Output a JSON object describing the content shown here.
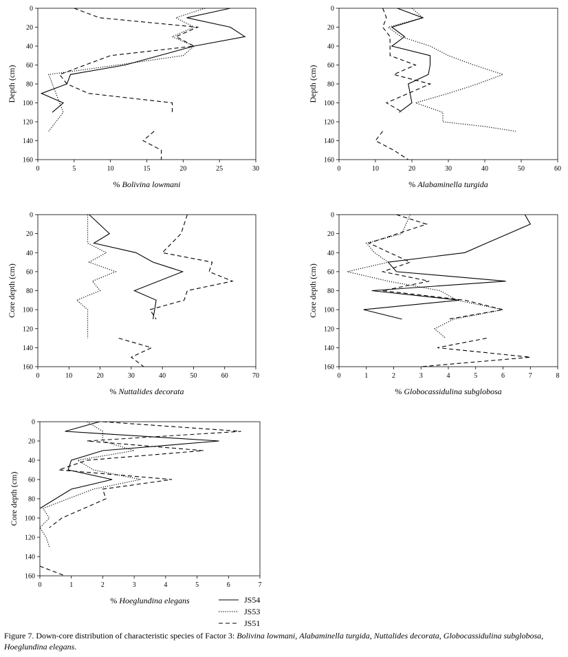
{
  "chart_data": [
    {
      "type": "line",
      "ylabel": "Depth (cm)",
      "xlabel_prefix": "% ",
      "xlabel_species": "Bolivina lowmani",
      "xlim": [
        0,
        30
      ],
      "xticks": [
        0,
        5,
        10,
        15,
        20,
        25,
        30
      ],
      "ylim": [
        0,
        160
      ],
      "yticks": [
        0,
        20,
        40,
        60,
        80,
        100,
        120,
        140,
        160
      ],
      "series": [
        {
          "name": "JS54",
          "points": [
            [
              26.5,
              0
            ],
            [
              20.5,
              10
            ],
            [
              26.5,
              20
            ],
            [
              28.5,
              30
            ],
            [
              21.5,
              40
            ],
            [
              12,
              60
            ],
            [
              4.5,
              70
            ],
            [
              4,
              80
            ],
            [
              0.5,
              90
            ],
            [
              3.5,
              100
            ],
            [
              2,
              110
            ]
          ]
        },
        {
          "name": "JS53",
          "points": [
            [
              23,
              0
            ],
            [
              19,
              10
            ],
            [
              21.5,
              20
            ],
            [
              18.5,
              30
            ],
            [
              21.5,
              40
            ],
            [
              20,
              50
            ],
            [
              11,
              60
            ],
            [
              1.5,
              70
            ],
            [
              2,
              80
            ],
            [
              2.5,
              90
            ],
            [
              3.5,
              110
            ],
            [
              1.5,
              130
            ]
          ]
        },
        {
          "name": "JS51",
          "points": [
            [
              5,
              0
            ],
            [
              8.5,
              10
            ],
            [
              22,
              20
            ],
            [
              19,
              30
            ],
            [
              21.5,
              40
            ],
            [
              10,
              50
            ],
            [
              3,
              70
            ],
            [
              4,
              80
            ],
            [
              7,
              90
            ],
            [
              18.5,
              100
            ],
            [
              18.5,
              110
            ]
          ],
          "points2": [
            [
              16,
              130
            ],
            [
              14.5,
              140
            ],
            [
              17,
              150
            ],
            [
              17,
              160
            ]
          ]
        }
      ]
    },
    {
      "type": "line",
      "ylabel": "Depth (cm)",
      "xlabel_prefix": "% ",
      "xlabel_species": "Alabaminella turgida",
      "xlim": [
        0,
        60
      ],
      "xticks": [
        0,
        10,
        20,
        30,
        40,
        50,
        60
      ],
      "ylim": [
        0,
        160
      ],
      "yticks": [
        0,
        20,
        40,
        60,
        80,
        100,
        120,
        140,
        160
      ],
      "series": [
        {
          "name": "JS54",
          "points": [
            [
              16,
              0
            ],
            [
              23,
              10
            ],
            [
              14.5,
              20
            ],
            [
              18,
              30
            ],
            [
              14.5,
              40
            ],
            [
              25,
              50
            ],
            [
              25,
              60
            ],
            [
              24.5,
              70
            ],
            [
              19,
              80
            ],
            [
              20,
              100
            ],
            [
              16.5,
              110
            ]
          ]
        },
        {
          "name": "JS53",
          "points": [
            [
              20,
              0
            ],
            [
              23,
              10
            ],
            [
              13.5,
              20
            ],
            [
              17,
              30
            ],
            [
              25,
              40
            ],
            [
              30,
              50
            ],
            [
              37,
              60
            ],
            [
              45,
              70
            ],
            [
              38,
              80
            ],
            [
              30,
              90
            ],
            [
              21,
              100
            ],
            [
              28.5,
              110
            ],
            [
              28.5,
              120
            ],
            [
              40,
              125
            ],
            [
              48.5,
              130
            ]
          ]
        },
        {
          "name": "JS51",
          "points": [
            [
              12,
              0
            ],
            [
              13,
              10
            ],
            [
              12,
              20
            ],
            [
              14,
              30
            ],
            [
              14,
              40
            ],
            [
              14,
              50
            ],
            [
              21,
              60
            ],
            [
              15,
              70
            ],
            [
              25,
              80
            ],
            [
              13,
              100
            ],
            [
              17.5,
              110
            ]
          ],
          "points2": [
            [
              12,
              130
            ],
            [
              10,
              140
            ],
            [
              15,
              150
            ],
            [
              19,
              160
            ]
          ]
        }
      ]
    },
    {
      "type": "line",
      "ylabel": "Core depth (cm)",
      "xlabel_prefix": "% ",
      "xlabel_species": "Nuttalides decorata",
      "xlim": [
        0,
        70
      ],
      "xticks": [
        0,
        10,
        20,
        30,
        40,
        50,
        60,
        70
      ],
      "ylim": [
        0,
        160
      ],
      "yticks": [
        0,
        20,
        40,
        60,
        80,
        100,
        120,
        140,
        160
      ],
      "series": [
        {
          "name": "JS54",
          "points": [
            [
              16.5,
              0
            ],
            [
              23,
              20
            ],
            [
              18,
              30
            ],
            [
              31.5,
              40
            ],
            [
              37,
              50
            ],
            [
              46.5,
              60
            ],
            [
              31,
              80
            ],
            [
              38,
              90
            ],
            [
              37,
              110
            ]
          ]
        },
        {
          "name": "JS53",
          "points": [
            [
              16,
              0
            ],
            [
              16,
              10
            ],
            [
              16,
              20
            ],
            [
              16,
              30
            ],
            [
              22,
              40
            ],
            [
              16.5,
              50
            ],
            [
              25,
              60
            ],
            [
              17.5,
              70
            ],
            [
              20,
              80
            ],
            [
              12.5,
              90
            ],
            [
              16,
              100
            ],
            [
              16,
              130
            ]
          ]
        },
        {
          "name": "JS51",
          "points": [
            [
              48,
              0
            ],
            [
              46,
              20
            ],
            [
              40,
              40
            ],
            [
              56,
              50
            ],
            [
              55,
              60
            ],
            [
              62.5,
              70
            ],
            [
              48,
              80
            ],
            [
              47,
              90
            ],
            [
              36,
              100
            ],
            [
              38,
              110
            ]
          ],
          "points2": [
            [
              26,
              130
            ],
            [
              36.5,
              140
            ],
            [
              30,
              150
            ],
            [
              34,
              160
            ]
          ]
        }
      ]
    },
    {
      "type": "line",
      "ylabel": "Core depth (cm)",
      "xlabel_prefix": "% ",
      "xlabel_species": "Globocassidulina subglobosa",
      "xlim": [
        0,
        8
      ],
      "xticks": [
        0,
        1,
        2,
        3,
        4,
        5,
        6,
        7,
        8
      ],
      "ylim": [
        0,
        160
      ],
      "yticks": [
        0,
        20,
        40,
        60,
        80,
        100,
        120,
        140,
        160
      ],
      "series": [
        {
          "name": "JS54",
          "points": [
            [
              6.8,
              0
            ],
            [
              7,
              10
            ],
            [
              6.2,
              20
            ],
            [
              5.4,
              30
            ],
            [
              4.6,
              40
            ],
            [
              1.8,
              50
            ],
            [
              2.1,
              60
            ],
            [
              6.1,
              70
            ],
            [
              1.2,
              80
            ],
            [
              4.4,
              90
            ],
            [
              0.9,
              100
            ],
            [
              2.3,
              110
            ]
          ]
        },
        {
          "name": "JS53",
          "points": [
            [
              2.6,
              0
            ],
            [
              2.3,
              20
            ],
            [
              1,
              30
            ],
            [
              1.3,
              40
            ],
            [
              1.8,
              50
            ],
            [
              0.3,
              60
            ],
            [
              1.8,
              70
            ],
            [
              3.7,
              80
            ],
            [
              4.3,
              90
            ],
            [
              6,
              100
            ],
            [
              4.2,
              110
            ],
            [
              3.5,
              120
            ],
            [
              3.9,
              130
            ]
          ]
        },
        {
          "name": "JS51",
          "points": [
            [
              2.1,
              0
            ],
            [
              3.2,
              10
            ],
            [
              1.1,
              30
            ],
            [
              2.6,
              50
            ],
            [
              1.6,
              60
            ],
            [
              3.3,
              70
            ],
            [
              1.6,
              80
            ],
            [
              4.6,
              90
            ],
            [
              6,
              100
            ],
            [
              4,
              110
            ]
          ],
          "points2": [
            [
              5.4,
              130
            ],
            [
              3.6,
              140
            ],
            [
              7,
              150
            ],
            [
              3,
              160
            ]
          ]
        }
      ]
    },
    {
      "type": "line",
      "ylabel": "Core depth (cm)",
      "xlabel_prefix": "% ",
      "xlabel_species": "Hoeglundina elegans",
      "xlim": [
        0,
        7
      ],
      "xticks": [
        0,
        1,
        2,
        3,
        4,
        5,
        6,
        7
      ],
      "ylim": [
        0,
        160
      ],
      "yticks": [
        0,
        20,
        40,
        60,
        80,
        100,
        120,
        140,
        160
      ],
      "series": [
        {
          "name": "JS54",
          "points": [
            [
              1.9,
              0
            ],
            [
              0.8,
              10
            ],
            [
              5.7,
              20
            ],
            [
              2,
              30
            ],
            [
              1,
              40
            ],
            [
              0.9,
              50
            ],
            [
              2.3,
              60
            ],
            [
              1,
              70
            ],
            [
              0,
              90
            ]
          ]
        },
        {
          "name": "JS53",
          "points": [
            [
              1.5,
              0
            ],
            [
              2,
              10
            ],
            [
              2,
              20
            ],
            [
              3,
              30
            ],
            [
              1.2,
              40
            ],
            [
              1.7,
              50
            ],
            [
              3.2,
              60
            ],
            [
              1.7,
              70
            ],
            [
              0.1,
              90
            ],
            [
              0.3,
              100
            ],
            [
              0,
              110
            ],
            [
              0.2,
              120
            ],
            [
              0.3,
              130
            ]
          ]
        },
        {
          "name": "JS51",
          "points": [
            [
              2,
              0
            ],
            [
              6.4,
              10
            ],
            [
              1.5,
              20
            ],
            [
              5.2,
              30
            ],
            [
              1.5,
              40
            ],
            [
              0.6,
              50
            ],
            [
              4.2,
              60
            ],
            [
              2,
              70
            ],
            [
              2.1,
              80
            ],
            [
              0.7,
              100
            ],
            [
              0.3,
              110
            ]
          ],
          "points2": [
            [
              0,
              150
            ],
            [
              0.8,
              160
            ]
          ]
        }
      ]
    }
  ],
  "legend": [
    {
      "name": "JS54"
    },
    {
      "name": "JS53"
    },
    {
      "name": "JS51"
    }
  ],
  "caption": {
    "lead": "Figure 7. Down-core distribution of characteristic species of Factor 3: ",
    "species": [
      "Bolivina lowmani",
      "Alabaminella turgida",
      "Nuttalides decorata",
      "Globocassidulina subglobosa",
      "Hoeglundina elegans"
    ],
    "separator": ", ",
    "end": "."
  }
}
